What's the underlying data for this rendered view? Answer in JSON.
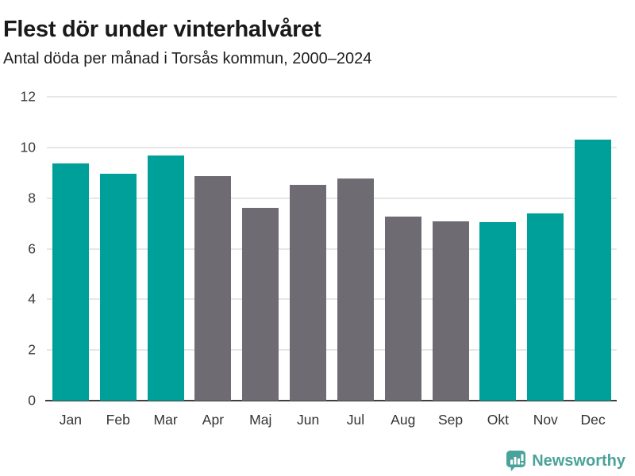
{
  "header": {
    "title": "Flest dör under vinterhalvåret",
    "subtitle": "Antal döda per månad i Torsås kommun, 2000–2024"
  },
  "footer": {
    "brand": "Newsworthy"
  },
  "colors": {
    "bar_winter": "#00a09a",
    "bar_summer": "#6e6c72",
    "gridline": "#e7e7e7",
    "axis_line": "#3f3f3f",
    "title_text": "#1a1a1a",
    "tick_label": "#3a3a3a",
    "logo": "#4aa39a"
  },
  "chart_data": {
    "type": "bar",
    "title": "Flest dör under vinterhalvåret",
    "subtitle": "Antal döda per månad i Torsås kommun, 2000–2024",
    "categories": [
      "Jan",
      "Feb",
      "Mar",
      "Apr",
      "Maj",
      "Jun",
      "Jul",
      "Aug",
      "Sep",
      "Okt",
      "Nov",
      "Dec"
    ],
    "values": [
      9.36,
      8.96,
      9.68,
      8.88,
      7.6,
      8.52,
      8.76,
      7.28,
      7.08,
      7.04,
      7.4,
      10.32
    ],
    "bar_color_keys": [
      "winter",
      "winter",
      "winter",
      "summer",
      "summer",
      "summer",
      "summer",
      "summer",
      "summer",
      "winter",
      "winter",
      "winter"
    ],
    "color_meaning": "teal = winter half-year months (Jan-Mar, Okt-Dec), gray = summer half-year months (Apr-Sep)",
    "xlabel": "",
    "ylabel": "",
    "ylim": [
      0,
      12
    ],
    "yticks": [
      0,
      2,
      4,
      6,
      8,
      10,
      12
    ],
    "grid": true,
    "legend": "none"
  }
}
